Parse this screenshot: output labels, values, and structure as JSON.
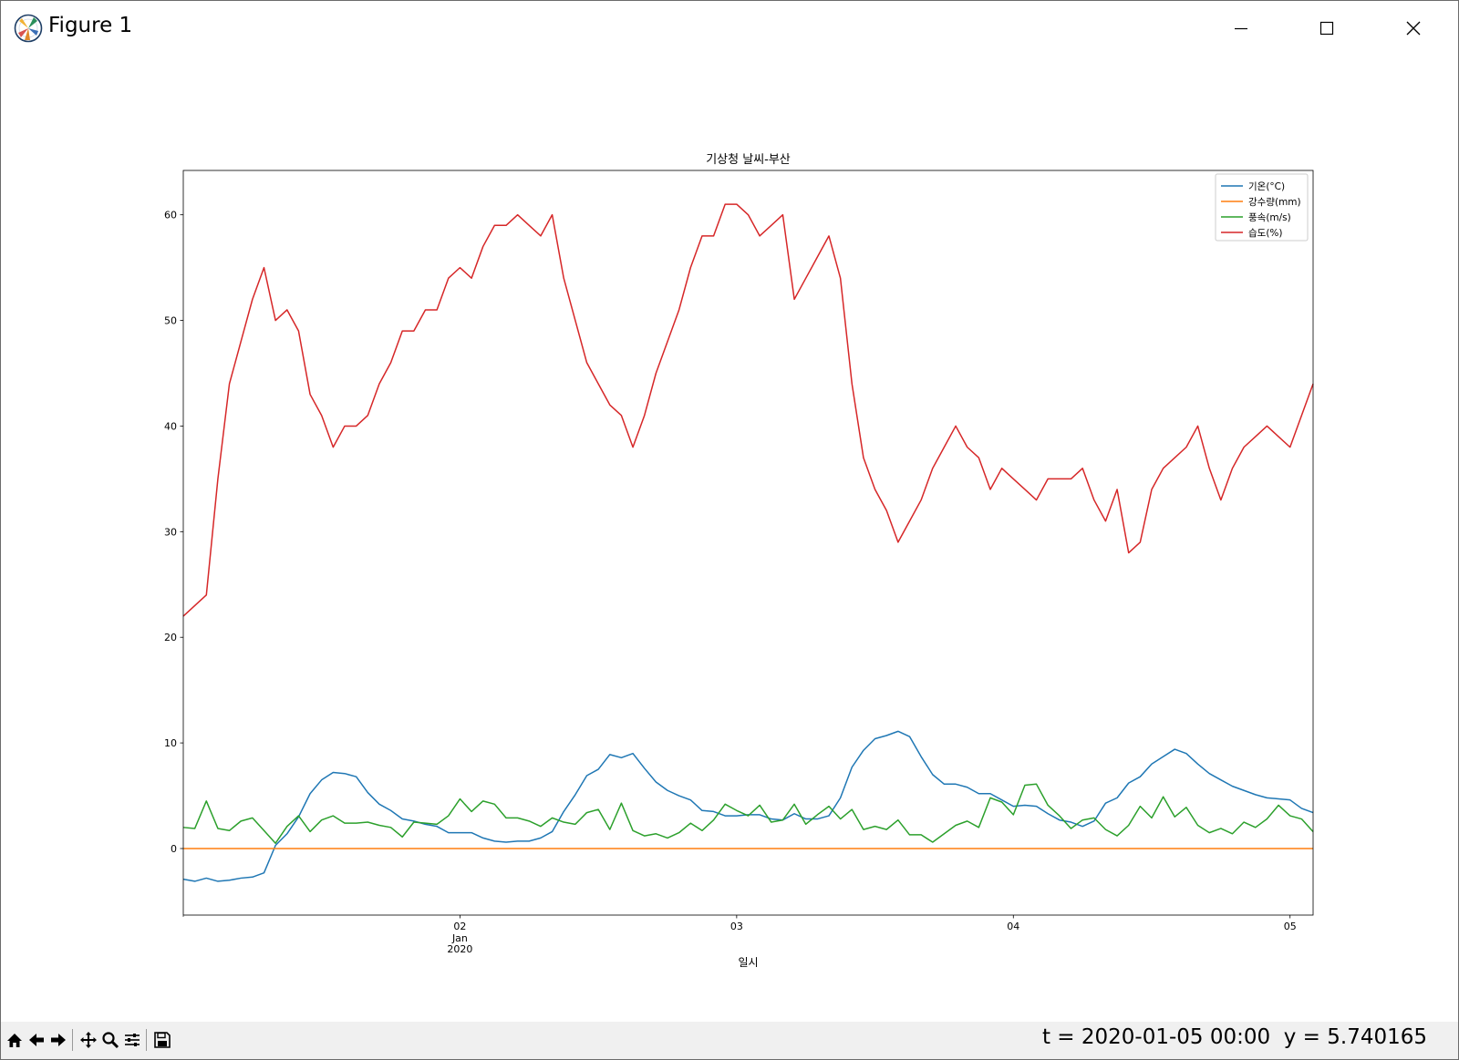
{
  "window": {
    "title": "Figure 1"
  },
  "toolbar": {
    "status": "t = 2020-01-05 00:00  y = 5.740165"
  },
  "icons": [
    "matplotlib-logo-icon",
    "minimize-icon",
    "maximize-icon",
    "close-icon",
    "home-icon",
    "back-icon",
    "forward-icon",
    "pan-icon",
    "zoom-icon",
    "configure-subplots-icon",
    "save-icon"
  ],
  "chart_data": {
    "type": "line",
    "title": "기상청 날씨-부산",
    "xlabel": "일시",
    "ylabel": "",
    "x_start": "2020-01-01 00:00",
    "x_step_hours": 1,
    "xlim": [
      "2020-01-01 00:00",
      "2020-01-05 02:00"
    ],
    "ylim": [
      -6.3,
      64.2
    ],
    "xticks": [
      {
        "at": "2020-01-02",
        "label": "02",
        "sub": [
          "Jan",
          "2020"
        ]
      },
      {
        "at": "2020-01-03",
        "label": "03",
        "sub": []
      },
      {
        "at": "2020-01-04",
        "label": "04",
        "sub": []
      },
      {
        "at": "2020-01-05",
        "label": "05",
        "sub": []
      }
    ],
    "yticks": [
      0,
      10,
      20,
      30,
      40,
      50,
      60
    ],
    "grid": false,
    "legend_position": "top-right",
    "series": [
      {
        "name": "기온(°C)",
        "color": "#1f77b4",
        "values": [
          -2.9,
          -3.1,
          -2.8,
          -3.1,
          -3.0,
          -2.8,
          -2.7,
          -2.3,
          0.3,
          1.4,
          3.0,
          5.2,
          6.5,
          7.2,
          7.1,
          6.8,
          5.3,
          4.2,
          3.6,
          2.8,
          2.6,
          2.3,
          2.1,
          1.5,
          1.5,
          1.5,
          1.0,
          0.7,
          0.6,
          0.7,
          0.7,
          1.0,
          1.6,
          3.5,
          5.1,
          6.9,
          7.5,
          8.9,
          8.6,
          9.0,
          7.6,
          6.3,
          5.5,
          5.0,
          4.6,
          3.6,
          3.5,
          3.1,
          3.1,
          3.2,
          3.2,
          2.8,
          2.7,
          3.3,
          2.8,
          2.8,
          3.1,
          4.8,
          7.7,
          9.3,
          10.4,
          10.7,
          11.1,
          10.6,
          8.7,
          7.0,
          6.1,
          6.1,
          5.8,
          5.2,
          5.2,
          4.6,
          4.0,
          4.1,
          4.0,
          3.3,
          2.7,
          2.5,
          2.1,
          2.6,
          4.3,
          4.8,
          6.2,
          6.8,
          8.0,
          8.7,
          9.4,
          9.0,
          8.0,
          7.1,
          6.5,
          5.9,
          5.5,
          5.1,
          4.8,
          4.7,
          4.6,
          3.8,
          3.4
        ]
      },
      {
        "name": "강수량(mm)",
        "color": "#ff7f0e",
        "values": [
          0,
          0,
          0,
          0,
          0,
          0,
          0,
          0,
          0,
          0,
          0,
          0,
          0,
          0,
          0,
          0,
          0,
          0,
          0,
          0,
          0,
          0,
          0,
          0,
          0,
          0,
          0,
          0,
          0,
          0,
          0,
          0,
          0,
          0,
          0,
          0,
          0,
          0,
          0,
          0,
          0,
          0,
          0,
          0,
          0,
          0,
          0,
          0,
          0,
          0,
          0,
          0,
          0,
          0,
          0,
          0,
          0,
          0,
          0,
          0,
          0,
          0,
          0,
          0,
          0,
          0,
          0,
          0,
          0,
          0,
          0,
          0,
          0,
          0,
          0,
          0,
          0,
          0,
          0,
          0,
          0,
          0,
          0,
          0,
          0,
          0,
          0,
          0,
          0,
          0,
          0,
          0,
          0,
          0,
          0,
          0,
          0,
          0,
          0
        ]
      },
      {
        "name": "풍속(m/s)",
        "color": "#2ca02c",
        "values": [
          2.0,
          1.9,
          4.5,
          1.9,
          1.7,
          2.6,
          2.9,
          1.7,
          0.5,
          2.1,
          3.1,
          1.6,
          2.7,
          3.1,
          2.4,
          2.4,
          2.5,
          2.2,
          2.0,
          1.1,
          2.5,
          2.4,
          2.3,
          3.1,
          4.7,
          3.5,
          4.5,
          4.2,
          2.9,
          2.9,
          2.6,
          2.1,
          2.9,
          2.5,
          2.3,
          3.4,
          3.7,
          1.8,
          4.3,
          1.7,
          1.2,
          1.4,
          1.0,
          1.5,
          2.4,
          1.7,
          2.7,
          4.2,
          3.6,
          3.1,
          4.1,
          2.5,
          2.7,
          4.2,
          2.3,
          3.2,
          4.0,
          2.8,
          3.7,
          1.8,
          2.1,
          1.8,
          2.7,
          1.3,
          1.3,
          0.6,
          1.4,
          2.2,
          2.6,
          2.0,
          4.8,
          4.4,
          3.2,
          6.0,
          6.1,
          4.1,
          3.1,
          1.9,
          2.7,
          2.9,
          1.8,
          1.2,
          2.2,
          4.0,
          2.9,
          4.9,
          3.0,
          3.9,
          2.2,
          1.5,
          1.9,
          1.4,
          2.5,
          2.0,
          2.8,
          4.1,
          3.1,
          2.8,
          1.6
        ]
      },
      {
        "name": "습도(%)",
        "color": "#d62728",
        "values": [
          22,
          23,
          24,
          35,
          44,
          48,
          52,
          55,
          50,
          51,
          49,
          43,
          41,
          38,
          40,
          40,
          41,
          44,
          46,
          49,
          49,
          51,
          51,
          54,
          55,
          54,
          57,
          59,
          59,
          60,
          59,
          58,
          60,
          54,
          50,
          46,
          44,
          42,
          41,
          38,
          41,
          45,
          48,
          51,
          55,
          58,
          58,
          61,
          61,
          60,
          58,
          59,
          60,
          52,
          54,
          56,
          58,
          54,
          44,
          37,
          34,
          32,
          29,
          31,
          33,
          36,
          38,
          40,
          38,
          37,
          34,
          36,
          35,
          34,
          33,
          35,
          35,
          35,
          36,
          33,
          31,
          34,
          28,
          29,
          34,
          36,
          37,
          38,
          40,
          36,
          33,
          36,
          38,
          39,
          40,
          39,
          38,
          41,
          44
        ]
      }
    ]
  }
}
